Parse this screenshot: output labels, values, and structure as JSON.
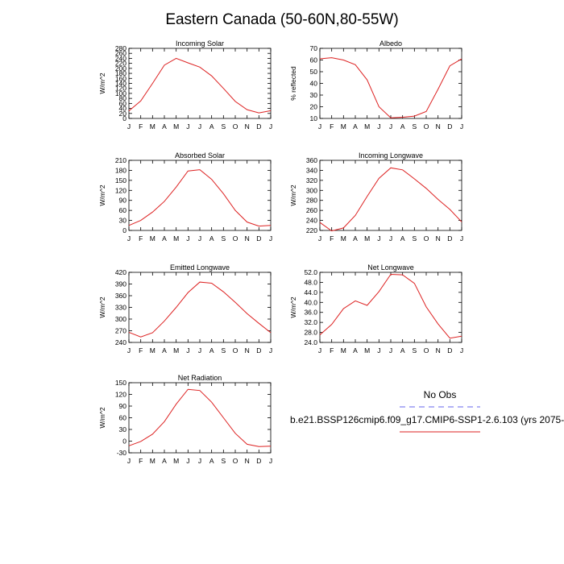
{
  "title": "Eastern Canada (50-60N,80-55W)",
  "months": [
    "J",
    "F",
    "M",
    "A",
    "M",
    "J",
    "J",
    "A",
    "S",
    "O",
    "N",
    "D",
    "J"
  ],
  "legend": {
    "obs_label": "No Obs",
    "obs_color": "#6666ee",
    "model_label": "b.e21.BSSP126cmip6.f09_g17.CMIP6-SSP1-2.6.103 (yrs 2075-",
    "model_color": "#dd2222"
  },
  "chart_data": [
    {
      "type": "line",
      "title": "Incoming Solar",
      "ylabel": "W/m^2",
      "ylim": [
        0,
        280
      ],
      "yticks": [
        "0",
        "20",
        "40",
        "60",
        "80",
        "100",
        "120",
        "140",
        "160",
        "180",
        "200",
        "220",
        "240",
        "260",
        "280"
      ],
      "series": [
        {
          "values": [
            30,
            70,
            140,
            213,
            240,
            222,
            205,
            170,
            120,
            68,
            35,
            22,
            31
          ]
        }
      ]
    },
    {
      "type": "line",
      "title": "Albedo",
      "ylabel": "% reflected",
      "ylim": [
        10,
        70
      ],
      "yticks": [
        "10",
        "20",
        "30",
        "40",
        "50",
        "60",
        "70"
      ],
      "series": [
        {
          "values": [
            61,
            62,
            60,
            56,
            43,
            20,
            10.5,
            11,
            12,
            16,
            35,
            55,
            61
          ]
        }
      ]
    },
    {
      "type": "line",
      "title": "Absorbed Solar",
      "ylabel": "W/m^2",
      "ylim": [
        0,
        210
      ],
      "yticks": [
        "0",
        "30",
        "60",
        "90",
        "120",
        "150",
        "180",
        "210"
      ],
      "series": [
        {
          "values": [
            15,
            30,
            55,
            87,
            130,
            178,
            182,
            153,
            110,
            60,
            25,
            13,
            15
          ]
        }
      ]
    },
    {
      "type": "line",
      "title": "Incoming Longwave",
      "ylabel": "W/m^2",
      "ylim": [
        220,
        360
      ],
      "yticks": [
        "220",
        "240",
        "260",
        "280",
        "300",
        "320",
        "340",
        "360"
      ],
      "series": [
        {
          "values": [
            236,
            219,
            225,
            250,
            288,
            324,
            345,
            341,
            323,
            304,
            282,
            262,
            237
          ]
        }
      ]
    },
    {
      "type": "line",
      "title": "Emitted Longwave",
      "ylabel": "W/m^2",
      "ylim": [
        240,
        420
      ],
      "yticks": [
        "240",
        "270",
        "300",
        "330",
        "360",
        "390",
        "420"
      ],
      "series": [
        {
          "values": [
            266,
            254,
            265,
            295,
            330,
            368,
            395,
            392,
            370,
            343,
            314,
            289,
            265
          ]
        }
      ]
    },
    {
      "type": "line",
      "title": "Net Longwave",
      "ylabel": "W/m^2",
      "ylim": [
        24.0,
        52.0
      ],
      "yticks": [
        "24.0",
        "28.0",
        "32.0",
        "36.0",
        "40.0",
        "44.0",
        "48.0",
        "52.0"
      ],
      "series": [
        {
          "values": [
            27.0,
            31.2,
            37.5,
            40.6,
            38.8,
            44.3,
            51.2,
            51.0,
            47.6,
            38.2,
            31.4,
            25.7,
            26.5
          ]
        }
      ]
    },
    {
      "type": "line",
      "title": "Net Radiation",
      "ylabel": "W/m^2",
      "ylim": [
        -30,
        150
      ],
      "yticks": [
        "-30",
        "0",
        "30",
        "60",
        "90",
        "120",
        "150"
      ],
      "series": [
        {
          "values": [
            -12,
            -1,
            18,
            50,
            95,
            133,
            130,
            100,
            60,
            20,
            -8,
            -14,
            -13
          ]
        }
      ]
    }
  ]
}
